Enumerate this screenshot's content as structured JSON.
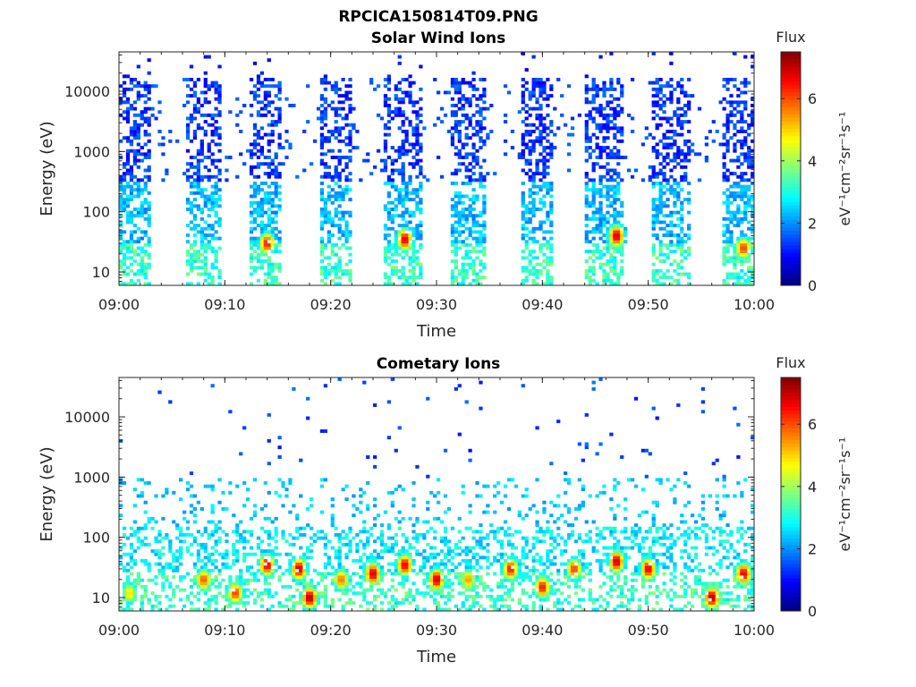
{
  "figure": {
    "title": "RPCICA150814T09.PNG"
  },
  "colors": {
    "axis": "#262626",
    "colormap": "jet"
  },
  "chart_data": [
    {
      "type": "heatmap",
      "title": "Solar Wind Ions",
      "xlabel": "Time",
      "ylabel": "Energy (eV)",
      "x_ticks": [
        "09:00",
        "09:10",
        "09:20",
        "09:30",
        "09:40",
        "09:50",
        "10:00"
      ],
      "xlim": [
        "09:00",
        "10:00"
      ],
      "y_scale": "log",
      "y_ticks": [
        "10",
        "100",
        "1000",
        "10000"
      ],
      "ylim": [
        6,
        45000
      ],
      "colorbar": {
        "title": "Flux",
        "label": "eV⁻¹cm⁻²sr⁻¹s⁻¹",
        "ticks": [
          "0",
          "2",
          "4",
          "6"
        ],
        "range": [
          0,
          7.5
        ]
      },
      "scan_windows_min": [
        [
          0,
          3
        ],
        [
          6.5,
          9.5
        ],
        [
          12.5,
          15.5
        ],
        [
          19,
          22
        ],
        [
          25,
          28.5
        ],
        [
          31.5,
          34.5
        ],
        [
          38,
          41
        ],
        [
          44,
          47.5
        ],
        [
          50.5,
          54
        ],
        [
          57,
          60
        ]
      ],
      "peaks": [
        {
          "time": "09:14",
          "energy": 30,
          "flux": 6.5
        },
        {
          "time": "09:27",
          "energy": 35,
          "flux": 6.8
        },
        {
          "time": "09:47",
          "energy": 40,
          "flux": 7.0
        },
        {
          "time": "09:59",
          "energy": 25,
          "flux": 6.2
        }
      ]
    },
    {
      "type": "heatmap",
      "title": "Cometary Ions",
      "xlabel": "Time",
      "ylabel": "Energy (eV)",
      "x_ticks": [
        "09:00",
        "09:10",
        "09:20",
        "09:30",
        "09:40",
        "09:50",
        "10:00"
      ],
      "xlim": [
        "09:00",
        "10:00"
      ],
      "y_scale": "log",
      "y_ticks": [
        "10",
        "100",
        "1000",
        "10000"
      ],
      "ylim": [
        6,
        45000
      ],
      "colorbar": {
        "title": "Flux",
        "label": "eV⁻¹cm⁻²sr⁻¹s⁻¹",
        "ticks": [
          "0",
          "2",
          "4",
          "6"
        ],
        "range": [
          0,
          7.5
        ]
      },
      "peaks": [
        {
          "time": "09:01",
          "energy": 12,
          "flux": 5.0
        },
        {
          "time": "09:08",
          "energy": 20,
          "flux": 6.0
        },
        {
          "time": "09:11",
          "energy": 12,
          "flux": 6.2
        },
        {
          "time": "09:14",
          "energy": 35,
          "flux": 6.8
        },
        {
          "time": "09:17",
          "energy": 30,
          "flux": 7.0
        },
        {
          "time": "09:18",
          "energy": 10,
          "flux": 7.2
        },
        {
          "time": "09:21",
          "energy": 20,
          "flux": 5.8
        },
        {
          "time": "09:24",
          "energy": 25,
          "flux": 7.0
        },
        {
          "time": "09:27",
          "energy": 35,
          "flux": 6.8
        },
        {
          "time": "09:30",
          "energy": 20,
          "flux": 7.0
        },
        {
          "time": "09:33",
          "energy": 20,
          "flux": 5.5
        },
        {
          "time": "09:37",
          "energy": 30,
          "flux": 6.5
        },
        {
          "time": "09:40",
          "energy": 15,
          "flux": 6.5
        },
        {
          "time": "09:43",
          "energy": 30,
          "flux": 6.2
        },
        {
          "time": "09:47",
          "energy": 40,
          "flux": 7.0
        },
        {
          "time": "09:50",
          "energy": 30,
          "flux": 6.8
        },
        {
          "time": "09:56",
          "energy": 10,
          "flux": 7.2
        },
        {
          "time": "09:59",
          "energy": 25,
          "flux": 6.8
        }
      ]
    }
  ]
}
